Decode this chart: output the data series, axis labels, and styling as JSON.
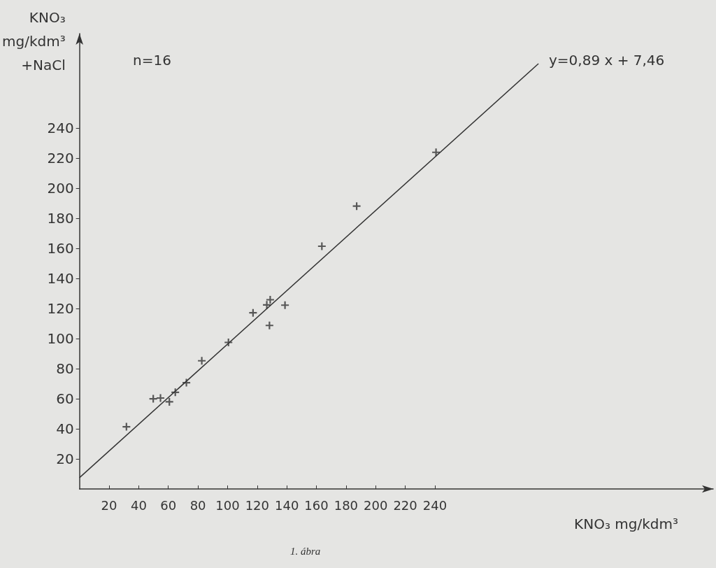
{
  "chart_data": {
    "type": "scatter",
    "xlabel": "KNO₃ mg/kdm³",
    "ylabel": "KNO₃\nmg/kdm³\n+NaCl",
    "annotations": [
      "n=16",
      "y=0,89 x + 7,46",
      "1. ábra"
    ],
    "xlim": [
      0,
      428
    ],
    "ylim": [
      0,
      303
    ],
    "xticks": [
      20,
      40,
      60,
      80,
      100,
      120,
      140,
      160,
      180,
      200,
      220,
      240
    ],
    "yticks": [
      20,
      40,
      60,
      80,
      100,
      120,
      140,
      160,
      180,
      200,
      220,
      240
    ],
    "series": [
      {
        "marker": "cross",
        "color": "#333333",
        "x": [
          31.7,
          49.8,
          54.7,
          60.7,
          64.7,
          72.2,
          82.6,
          100.6,
          117.2,
          126.5,
          128.8,
          128.3,
          138.8,
          163.7,
          187.2,
          240.8
        ],
        "values": [
          41.4,
          60,
          60.5,
          58,
          64.3,
          70.7,
          85.3,
          97.5,
          117.2,
          122.5,
          125.9,
          108.8,
          122.3,
          161.5,
          188.2,
          224
        ]
      },
      {
        "type": "line",
        "color": "#333333",
        "x": [
          0,
          310
        ],
        "values": [
          7.5,
          283
        ]
      }
    ]
  }
}
